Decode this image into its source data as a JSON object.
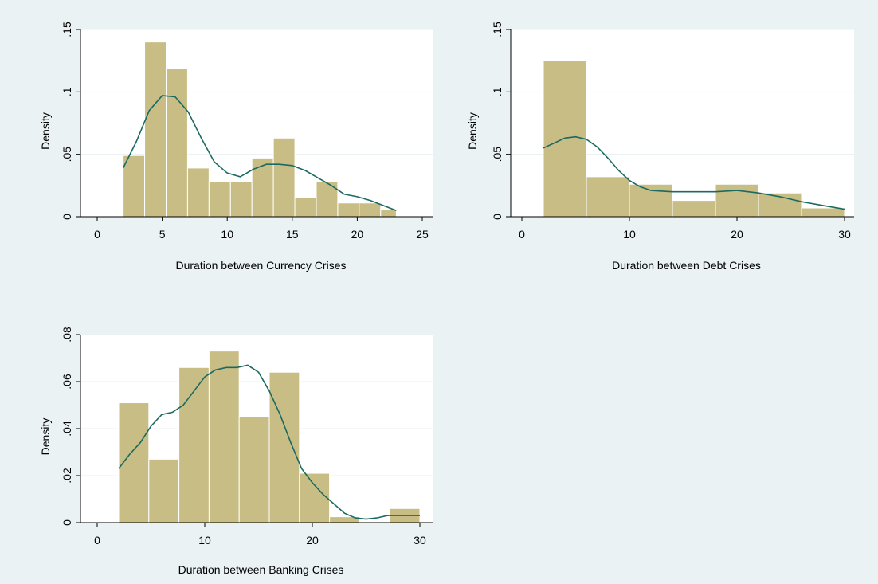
{
  "chart_data": [
    {
      "type": "histogram",
      "panel": "top-left",
      "xlabel": "Duration between Currency Crises",
      "ylabel": "Density",
      "xlim": [
        0,
        25
      ],
      "ylim": [
        0,
        0.15
      ],
      "xticks": [
        0,
        5,
        10,
        15,
        20,
        25
      ],
      "xtick_labels": [
        "0",
        "5",
        "10",
        "15",
        "20",
        "25"
      ],
      "yticks": [
        0,
        0.05,
        0.1,
        0.15
      ],
      "ytick_labels": [
        "0",
        ".05",
        ".1",
        ".15"
      ],
      "grid": true,
      "bins": [
        {
          "x0": 2.0,
          "x1": 3.65,
          "density": 0.049
        },
        {
          "x0": 3.65,
          "x1": 5.3,
          "density": 0.14
        },
        {
          "x0": 5.3,
          "x1": 6.95,
          "density": 0.119
        },
        {
          "x0": 6.95,
          "x1": 8.6,
          "density": 0.039
        },
        {
          "x0": 8.6,
          "x1": 10.25,
          "density": 0.028
        },
        {
          "x0": 10.25,
          "x1": 11.9,
          "density": 0.028
        },
        {
          "x0": 11.9,
          "x1": 13.55,
          "density": 0.047
        },
        {
          "x0": 13.55,
          "x1": 15.2,
          "density": 0.063
        },
        {
          "x0": 15.2,
          "x1": 16.85,
          "density": 0.015
        },
        {
          "x0": 16.85,
          "x1": 18.5,
          "density": 0.028
        },
        {
          "x0": 18.5,
          "x1": 20.15,
          "density": 0.011
        },
        {
          "x0": 20.15,
          "x1": 21.8,
          "density": 0.011
        },
        {
          "x0": 21.8,
          "x1": 23.0,
          "density": 0.006
        }
      ],
      "kde": {
        "x": [
          2,
          3,
          4,
          5,
          6,
          7,
          8,
          9,
          10,
          11,
          12,
          13,
          14,
          15,
          16,
          17,
          18,
          19,
          20,
          21,
          22,
          23
        ],
        "y": [
          0.039,
          0.06,
          0.085,
          0.097,
          0.096,
          0.084,
          0.063,
          0.044,
          0.035,
          0.032,
          0.038,
          0.042,
          0.042,
          0.041,
          0.037,
          0.031,
          0.025,
          0.018,
          0.016,
          0.013,
          0.009,
          0.005
        ]
      }
    },
    {
      "type": "histogram",
      "panel": "top-right",
      "xlabel": "Duration between Debt Crises",
      "ylabel": "Density",
      "xlim": [
        0,
        30
      ],
      "ylim": [
        0,
        0.15
      ],
      "xticks": [
        0,
        10,
        20,
        30
      ],
      "xtick_labels": [
        "0",
        "10",
        "20",
        "30"
      ],
      "yticks": [
        0,
        0.05,
        0.1,
        0.15
      ],
      "ytick_labels": [
        "0",
        ".05",
        ".1",
        ".15"
      ],
      "grid": true,
      "bins": [
        {
          "x0": 2.0,
          "x1": 6.0,
          "density": 0.125
        },
        {
          "x0": 6.0,
          "x1": 10.0,
          "density": 0.032
        },
        {
          "x0": 10.0,
          "x1": 14.0,
          "density": 0.026
        },
        {
          "x0": 14.0,
          "x1": 18.0,
          "density": 0.013
        },
        {
          "x0": 18.0,
          "x1": 22.0,
          "density": 0.026
        },
        {
          "x0": 22.0,
          "x1": 26.0,
          "density": 0.019
        },
        {
          "x0": 26.0,
          "x1": 30.0,
          "density": 0.007
        }
      ],
      "kde": {
        "x": [
          2,
          3,
          4,
          5,
          6,
          7,
          8,
          9,
          10,
          11,
          12,
          14,
          16,
          18,
          20,
          22,
          24,
          26,
          28,
          30
        ],
        "y": [
          0.055,
          0.059,
          0.063,
          0.064,
          0.062,
          0.056,
          0.047,
          0.037,
          0.029,
          0.024,
          0.021,
          0.02,
          0.02,
          0.02,
          0.021,
          0.019,
          0.016,
          0.012,
          0.009,
          0.006
        ]
      }
    },
    {
      "type": "histogram",
      "panel": "bottom-left",
      "xlabel": "Duration between Banking Crises",
      "ylabel": "Density",
      "xlim": [
        0,
        30
      ],
      "ylim": [
        0,
        0.08
      ],
      "xticks": [
        0,
        10,
        20,
        30
      ],
      "xtick_labels": [
        "0",
        "10",
        "20",
        "30"
      ],
      "yticks": [
        0,
        0.02,
        0.04,
        0.06,
        0.08
      ],
      "ytick_labels": [
        "0",
        ".02",
        ".04",
        ".06",
        ".08"
      ],
      "grid": true,
      "bins": [
        {
          "x0": 2.0,
          "x1": 4.8,
          "density": 0.051
        },
        {
          "x0": 4.8,
          "x1": 7.6,
          "density": 0.027
        },
        {
          "x0": 7.6,
          "x1": 10.4,
          "density": 0.066
        },
        {
          "x0": 10.4,
          "x1": 13.2,
          "density": 0.073
        },
        {
          "x0": 13.2,
          "x1": 16.0,
          "density": 0.045
        },
        {
          "x0": 16.0,
          "x1": 18.8,
          "density": 0.064
        },
        {
          "x0": 18.8,
          "x1": 21.6,
          "density": 0.021
        },
        {
          "x0": 21.6,
          "x1": 24.4,
          "density": 0.0025
        },
        {
          "x0": 24.4,
          "x1": 27.2,
          "density": 0.0
        },
        {
          "x0": 27.2,
          "x1": 30.0,
          "density": 0.006
        }
      ],
      "kde": {
        "x": [
          2,
          3,
          4,
          5,
          6,
          7,
          8,
          9,
          10,
          11,
          12,
          13,
          14,
          15,
          16,
          17,
          18,
          19,
          20,
          21,
          22,
          23,
          24,
          25,
          26,
          27,
          28,
          29,
          30
        ],
        "y": [
          0.023,
          0.029,
          0.034,
          0.041,
          0.046,
          0.047,
          0.05,
          0.056,
          0.062,
          0.065,
          0.066,
          0.066,
          0.067,
          0.064,
          0.056,
          0.046,
          0.034,
          0.023,
          0.017,
          0.012,
          0.008,
          0.004,
          0.002,
          0.0015,
          0.002,
          0.003,
          0.003,
          0.003,
          0.003
        ]
      }
    }
  ]
}
